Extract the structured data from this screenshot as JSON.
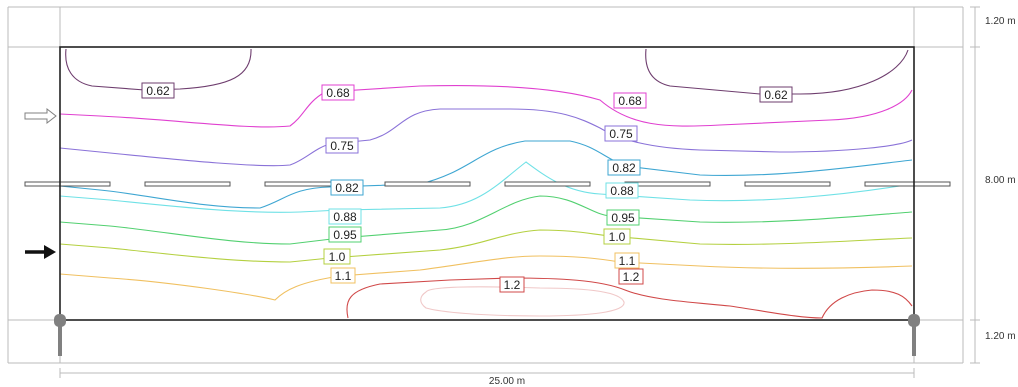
{
  "dimensions": {
    "width_label": "25.00 m",
    "top_sidewalk_label": "1.20 m",
    "road_label": "8.00 m",
    "bottom_sidewalk_label": "1.20 m"
  },
  "colors": {
    "0.62": "#6e3d6e",
    "0.68": "#e040d0",
    "0.75": "#8a72d8",
    "0.82": "#3ea6d2",
    "0.88": "#6fe1e6",
    "0.95": "#52d070",
    "1.0": "#b4d040",
    "1.1": "#f0c060",
    "1.2": "#d04848",
    "1.2-inner": "#f0c8c8"
  },
  "isolines": [
    {
      "level": "0.62",
      "labels": [
        "0.62",
        "0.62"
      ]
    },
    {
      "level": "0.68",
      "labels": [
        "0.68",
        "0.68"
      ]
    },
    {
      "level": "0.75",
      "labels": [
        "0.75",
        "0.75"
      ]
    },
    {
      "level": "0.82",
      "labels": [
        "0.82",
        "0.82"
      ]
    },
    {
      "level": "0.88",
      "labels": [
        "0.88",
        "0.88"
      ]
    },
    {
      "level": "0.95",
      "labels": [
        "0.95",
        "0.95"
      ]
    },
    {
      "level": "1.0",
      "labels": [
        "1.0",
        "1.0"
      ]
    },
    {
      "level": "1.1",
      "labels": [
        "1.1",
        "1.1"
      ]
    },
    {
      "level": "1.2",
      "labels": [
        "1.2",
        "1.2"
      ]
    }
  ],
  "arrows": [
    {
      "name": "traffic-direction-arrow-outline-icon",
      "style": "outline"
    },
    {
      "name": "traffic-direction-arrow-solid-icon",
      "style": "solid"
    }
  ]
}
